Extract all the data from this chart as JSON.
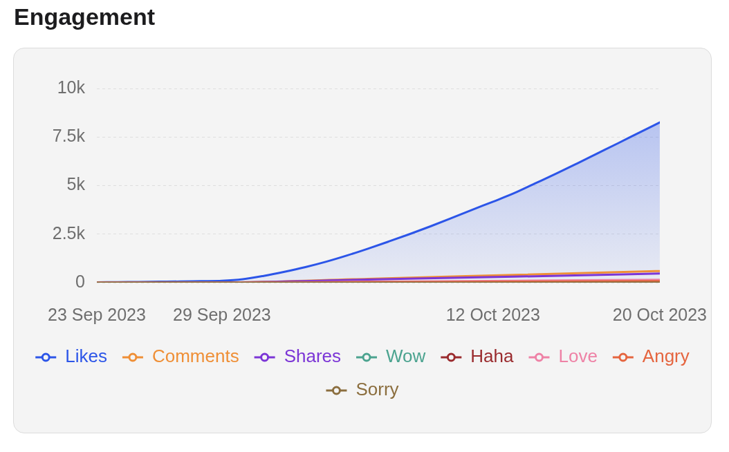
{
  "chart_data": {
    "type": "area",
    "title": "Engagement",
    "x": [
      "2023-09-23",
      "2023-09-24",
      "2023-09-25",
      "2023-09-26",
      "2023-09-27",
      "2023-09-28",
      "2023-09-29",
      "2023-09-30",
      "2023-10-01",
      "2023-10-02",
      "2023-10-03",
      "2023-10-04",
      "2023-10-05",
      "2023-10-06",
      "2023-10-07",
      "2023-10-08",
      "2023-10-09",
      "2023-10-10",
      "2023-10-11",
      "2023-10-12",
      "2023-10-13",
      "2023-10-14",
      "2023-10-15",
      "2023-10-16",
      "2023-10-17",
      "2023-10-18",
      "2023-10-19",
      "2023-10-20"
    ],
    "xlim": [
      "2023-09-23",
      "2023-10-20"
    ],
    "xticks": [
      {
        "value": "2023-09-23",
        "label": "23 Sep 2023"
      },
      {
        "value": "2023-09-29",
        "label": "29 Sep 2023"
      },
      {
        "value": "2023-10-12",
        "label": "12 Oct 2023"
      },
      {
        "value": "2023-10-20",
        "label": "20 Oct 2023"
      }
    ],
    "ylim": [
      0,
      10000
    ],
    "yticks": [
      0,
      {
        "value": 2500,
        "label": "2.5k"
      },
      {
        "value": 5000,
        "label": "5k"
      },
      {
        "value": 7500,
        "label": "7.5k"
      },
      {
        "value": 10000,
        "label": "10k"
      }
    ],
    "series": [
      {
        "name": "Likes",
        "color": "#2c55e8",
        "values": [
          20,
          30,
          40,
          50,
          60,
          80,
          100,
          180,
          350,
          560,
          800,
          1080,
          1400,
          1750,
          2120,
          2500,
          2900,
          3320,
          3750,
          4170,
          4600,
          5100,
          5600,
          6120,
          6650,
          7180,
          7720,
          8250
        ]
      },
      {
        "name": "Comments",
        "type": "line",
        "color": "#ef8f36",
        "x": [
          "2023-09-23",
          "2023-09-29",
          "2023-10-06",
          "2023-10-13",
          "2023-10-20"
        ],
        "values": [
          0,
          10,
          200,
          400,
          600
        ]
      },
      {
        "name": "Shares",
        "type": "line",
        "color": "#7b35d6",
        "x": [
          "2023-09-23",
          "2023-09-29",
          "2023-10-06",
          "2023-10-13",
          "2023-10-20"
        ],
        "values": [
          0,
          10,
          160,
          310,
          470
        ]
      },
      {
        "name": "Wow",
        "type": "line",
        "color": "#4ba38f",
        "values": [
          null,
          null,
          null,
          null,
          null,
          null,
          null,
          null,
          null,
          null,
          null,
          null,
          null,
          null,
          null,
          null,
          null,
          null,
          null,
          null,
          null,
          null,
          null,
          null,
          null,
          null,
          null,
          null
        ]
      },
      {
        "name": "Haha",
        "type": "line",
        "color": "#9a2b2e",
        "values": [
          null,
          null,
          null,
          null,
          null,
          null,
          null,
          null,
          null,
          null,
          null,
          null,
          null,
          null,
          null,
          null,
          null,
          null,
          null,
          null,
          null,
          null,
          null,
          null,
          null,
          null,
          null,
          null
        ]
      },
      {
        "name": "Love",
        "type": "line",
        "color": "#ee82a6",
        "x": [
          "2023-09-23",
          "2023-09-29",
          "2023-10-06",
          "2023-10-13",
          "2023-10-20"
        ],
        "values": [
          0,
          0,
          50,
          100,
          150
        ]
      },
      {
        "name": "Angry",
        "type": "line",
        "color": "#e5653f",
        "x": [
          "2023-09-23",
          "2023-09-29",
          "2023-10-06",
          "2023-10-13",
          "2023-10-20"
        ],
        "values": [
          0,
          0,
          30,
          50,
          80
        ]
      },
      {
        "name": "Sorry",
        "type": "line",
        "color": "#8b6e3e",
        "x": [
          "2023-09-23",
          "2023-09-29",
          "2023-10-06",
          "2023-10-13",
          "2023-10-20"
        ],
        "values": [
          0,
          0,
          0,
          0,
          10
        ]
      }
    ],
    "grid": "y",
    "legend": "bottom",
    "marker": "none"
  }
}
